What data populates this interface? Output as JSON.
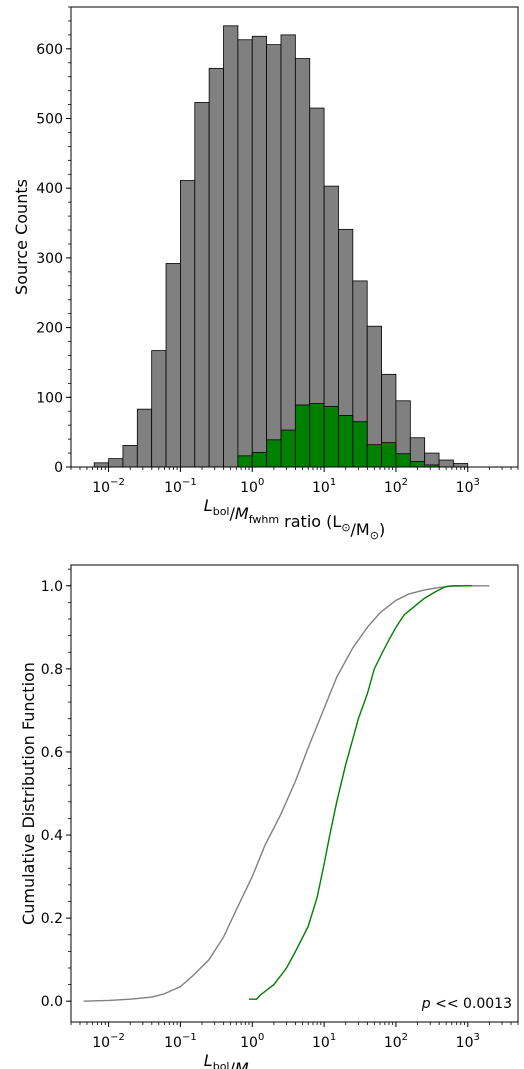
{
  "chart_data": [
    {
      "type": "bar",
      "xscale": "log",
      "xlim": [
        0.003,
        5000
      ],
      "ylim": [
        0,
        660
      ],
      "ylabel": "Source Counts",
      "xlabel": "L_bol/M_fwhm ratio (L_⊙/M_⊙)",
      "x_tick_labels": [
        "10^-2",
        "10^-1",
        "10^0",
        "10^1",
        "10^2",
        "10^3"
      ],
      "y_tick_labels": [
        "0",
        "100",
        "200",
        "300",
        "400",
        "500",
        "600"
      ],
      "bin_edges_log10": [
        -2.2,
        -2.0,
        -1.8,
        -1.6,
        -1.4,
        -1.2,
        -1.0,
        -0.8,
        -0.6,
        -0.4,
        -0.2,
        0.0,
        0.2,
        0.4,
        0.6,
        0.8,
        1.0,
        1.2,
        1.4,
        1.6,
        1.8,
        2.0,
        2.2,
        2.4,
        2.6,
        2.8,
        3.0,
        3.2
      ],
      "series": [
        {
          "color": "#808080",
          "values": [
            6,
            12,
            31,
            83,
            167,
            292,
            411,
            523,
            572,
            633,
            613,
            618,
            606,
            620,
            586,
            515,
            403,
            341,
            267,
            202,
            133,
            95,
            42,
            20,
            10,
            5,
            0
          ]
        },
        {
          "color": "#008000",
          "values": [
            0,
            0,
            0,
            0,
            0,
            0,
            0,
            0,
            0,
            0,
            16,
            21,
            39,
            53,
            89,
            91,
            87,
            74,
            65,
            32,
            35,
            19,
            8,
            3,
            0,
            0,
            0
          ]
        }
      ],
      "grid": false
    },
    {
      "type": "line",
      "xscale": "log",
      "xlim": [
        0.003,
        5000
      ],
      "ylim": [
        -0.05,
        1.05
      ],
      "ylabel": "Cumulative Distribution Function",
      "xlabel": "L_bol/M_fwhm ratio (L_⊙/M_⊙)",
      "x_tick_labels": [
        "10^-2",
        "10^-1",
        "10^0",
        "10^1",
        "10^2",
        "10^3"
      ],
      "y_tick_labels": [
        "0.0",
        "0.2",
        "0.4",
        "0.6",
        "0.8",
        "1.0"
      ],
      "annotation": "p << 0.0013",
      "series": [
        {
          "color": "#808080",
          "x": [
            0.0045,
            0.01,
            0.02,
            0.04,
            0.06,
            0.1,
            0.15,
            0.25,
            0.4,
            0.6,
            1.0,
            1.5,
            2.5,
            4,
            6,
            10,
            15,
            25,
            40,
            60,
            100,
            150,
            250,
            400,
            600,
            1000,
            2000
          ],
          "y": [
            0.0,
            0.002,
            0.005,
            0.01,
            0.018,
            0.035,
            0.062,
            0.1,
            0.155,
            0.22,
            0.3,
            0.375,
            0.45,
            0.53,
            0.61,
            0.705,
            0.78,
            0.85,
            0.9,
            0.935,
            0.965,
            0.98,
            0.99,
            0.996,
            0.999,
            1.0,
            1.0
          ]
        },
        {
          "color": "#008000",
          "x": [
            0.9,
            1.15,
            1.3,
            2.0,
            3.0,
            4.0,
            6.0,
            8.0,
            10.0,
            12.0,
            15.0,
            20.0,
            25.0,
            30.0,
            40.0,
            50.0,
            65.0,
            80.0,
            100.0,
            130.0,
            180.0,
            250.0,
            350.0,
            450.0,
            500.0,
            600.0,
            800.0,
            1000.0,
            1150.0
          ],
          "y": [
            0.005,
            0.005,
            0.015,
            0.04,
            0.08,
            0.12,
            0.18,
            0.25,
            0.33,
            0.4,
            0.48,
            0.57,
            0.63,
            0.68,
            0.74,
            0.8,
            0.84,
            0.87,
            0.9,
            0.93,
            0.95,
            0.97,
            0.985,
            0.995,
            0.998,
            1.0,
            1.0,
            1.0,
            1.0
          ]
        }
      ],
      "grid": false
    }
  ]
}
